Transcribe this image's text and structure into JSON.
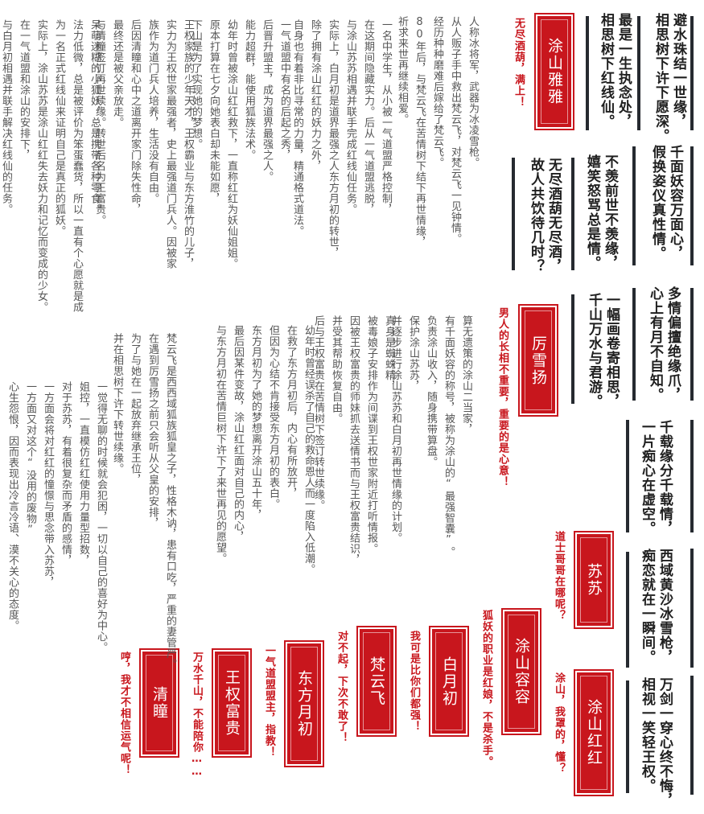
{
  "poems": {
    "p1": [
      "避水珠结一世缘，",
      "相思树下许下愿深。"
    ],
    "p2": [
      "最是一生执念处，",
      "相思树下红线仙。"
    ],
    "p3": [
      "千面妖容万面心，",
      "假换姿仪真性情。"
    ],
    "p4": [
      "不羡前世不羡缘，",
      "嬉笑怒骂总是情。"
    ],
    "p5": [
      "无尽酒葫无尽酒，",
      "故人共饮待几时？"
    ],
    "p6": [
      "多情偏擅绝缘爪，",
      "心上有月不自知。"
    ],
    "p7": [
      "一幅画卷寄相思，",
      "千山万水与君游。"
    ],
    "p8": [
      "千载缘分千载情，",
      "一片痴心在虚空。"
    ],
    "p9": [
      "西域黄沙冰雪枪，",
      "痴恋就在一瞬间。"
    ],
    "p10": [
      "万剑一穿心终不悔，",
      "相视一笑轻王权。"
    ]
  },
  "names": {
    "yaya": "涂山雅雅",
    "lixueyang": "厉雪扬",
    "susu": "苏苏",
    "rongrong": "涂山容容",
    "honghong": "涂山红红",
    "baiyuechu": "白月初",
    "fanyunfei": "梵云飞",
    "dongfangyuechu": "东方月初",
    "wangquanfugui": "王权富贵",
    "qingtong": "清瞳"
  },
  "quotes": {
    "yaya": "无尽酒葫，满上！",
    "lixueyang": "男人的长相不重要，重要的是心意！",
    "susu": "道士哥哥在哪呢？",
    "rongrong": "狐妖的职业是红娘，不是杀手。",
    "honghong": "涂山，我罩的，懂？",
    "baiyuechu": "我可是比你们都强！",
    "fanyunfei": "对不起，下次不敢了！",
    "dongfangyuechu": "一气道盟盟主，指教！",
    "wangquanfugui": "万水千山，不能陪你……",
    "qingtong": "哼，我才不相信运气呢！"
  },
  "descs": {
    "d1": [
      "人称冰将军，武器为冰凌雪枪。",
      "从人贩子手中救出梵云飞，对梵云飞一见钟情。",
      "经历种种磨难后嫁给了梵云飞。",
      "80年后，与梵云飞在苦情树下结下再世情缘，",
      "祈求来世再继续相爱。"
    ],
    "d2": [
      "一名中学生，从小被一气道盟严格控制，",
      "在这期间隐藏实力。后从一气道盟逃脱，",
      "与涂山苏苏相遇并联手完成红线仙任务。",
      "实际上，白月初是道界最强之人东方月初的转世，",
      "除了拥有涂山红红的妖力之外，",
      "自身也有着非比寻常的力量，精通格式道法。"
    ],
    "d3": [
      "一气道盟中有名的后起之秀，",
      "后晋升盟主，成为道界最强之人。",
      "能力超群，能使用狐族法术。",
      "幼年时曾被涂山红红救下，一直称红红为妖仙姐姐。",
      "原本打算在七夕向她表白却未能如愿，",
      "下山是为了实现她的梦想。"
    ],
    "d4": [
      "王权家族的少年天才，王权霸业与东方淮竹的儿子，",
      "实力为王权世家最强者，史上最强道门兵人。因被家",
      "族作为道门兵人培养，生活没有自由。",
      "后因清瞳和心中之道离开家门除失性命，",
      "最终还是被父亲放走。",
      "与清瞳签订再世续缘。转世后名为王富贵。"
    ],
    "d5": [
      "呆萌迷糊的小狐妖，总是携带各种零食。",
      "法力低微，总是被评价为笨蛋蠢货，所以一直有个心愿就是成",
      "为一名正式红线仙来证明自己是真正的狐妖。",
      "实际上，涂山苏苏是涂山红红失去妖力和记忆而变成的少女。",
      "在一气道盟和涂山的安排下，",
      "与白月初相遇并联手解决红线仙的任务。"
    ],
    "d6": [
      "算无遗策的涂山二当家，",
      "有千面妖容的称号，被称为涂山的“最强智囊”。",
      "负责涂山收入，随身携带算盘。",
      "保护涂山苏苏，",
      "并逐步进行涂山苏苏和白月初再世情缘的计划。"
    ],
    "d7": [
      "真身是蜘蛛精，",
      "被毒娘子安排作为间谍到王权世家附近打听情报。",
      "因被王权富贵的师妹抓去送情书而与王权富贵结识，",
      "并受其帮助恢复自由。",
      "后与王权富贵在苦情树下签订转世续缘。"
    ],
    "d8": [
      "幼年时曾经误杀了自己的救命恩人而一度陷入低潮。",
      "在救了东方月初后，内心有所放开，",
      "但因为心结不肯接受东方月初的表白。",
      "东方月初为了她的梦想离开涂山五十年，",
      "最后因某件变故，涂山红红面对自己的内心，",
      "与东方月初在苦情巨树下许下了来世再见的愿望。"
    ],
    "d9": [
      "梵云飞是西西域狐族狐皇之子，性格木讷，患有口吃，严重的妻管严。",
      "在遇到厉雪扬之前只会听从父皇的安排，",
      "为了与她在一起放弃继承王位，",
      "并在相思树下许下转世续缘。"
    ],
    "d10": [
      "一觉得无聊的时候就会犯困，一切以自己的喜好为中心。",
      "姐控，一直模仿红红使用力量型招数，",
      "对于苏苏，有着很复杂而矛盾的感情，",
      "一方面会将对红红的憧憬与思念带入苏苏，",
      "一方面又对这个“没用的废物”",
      "心生怨恨，因而表现出冷言冷语、漠不关心的态度。"
    ]
  }
}
